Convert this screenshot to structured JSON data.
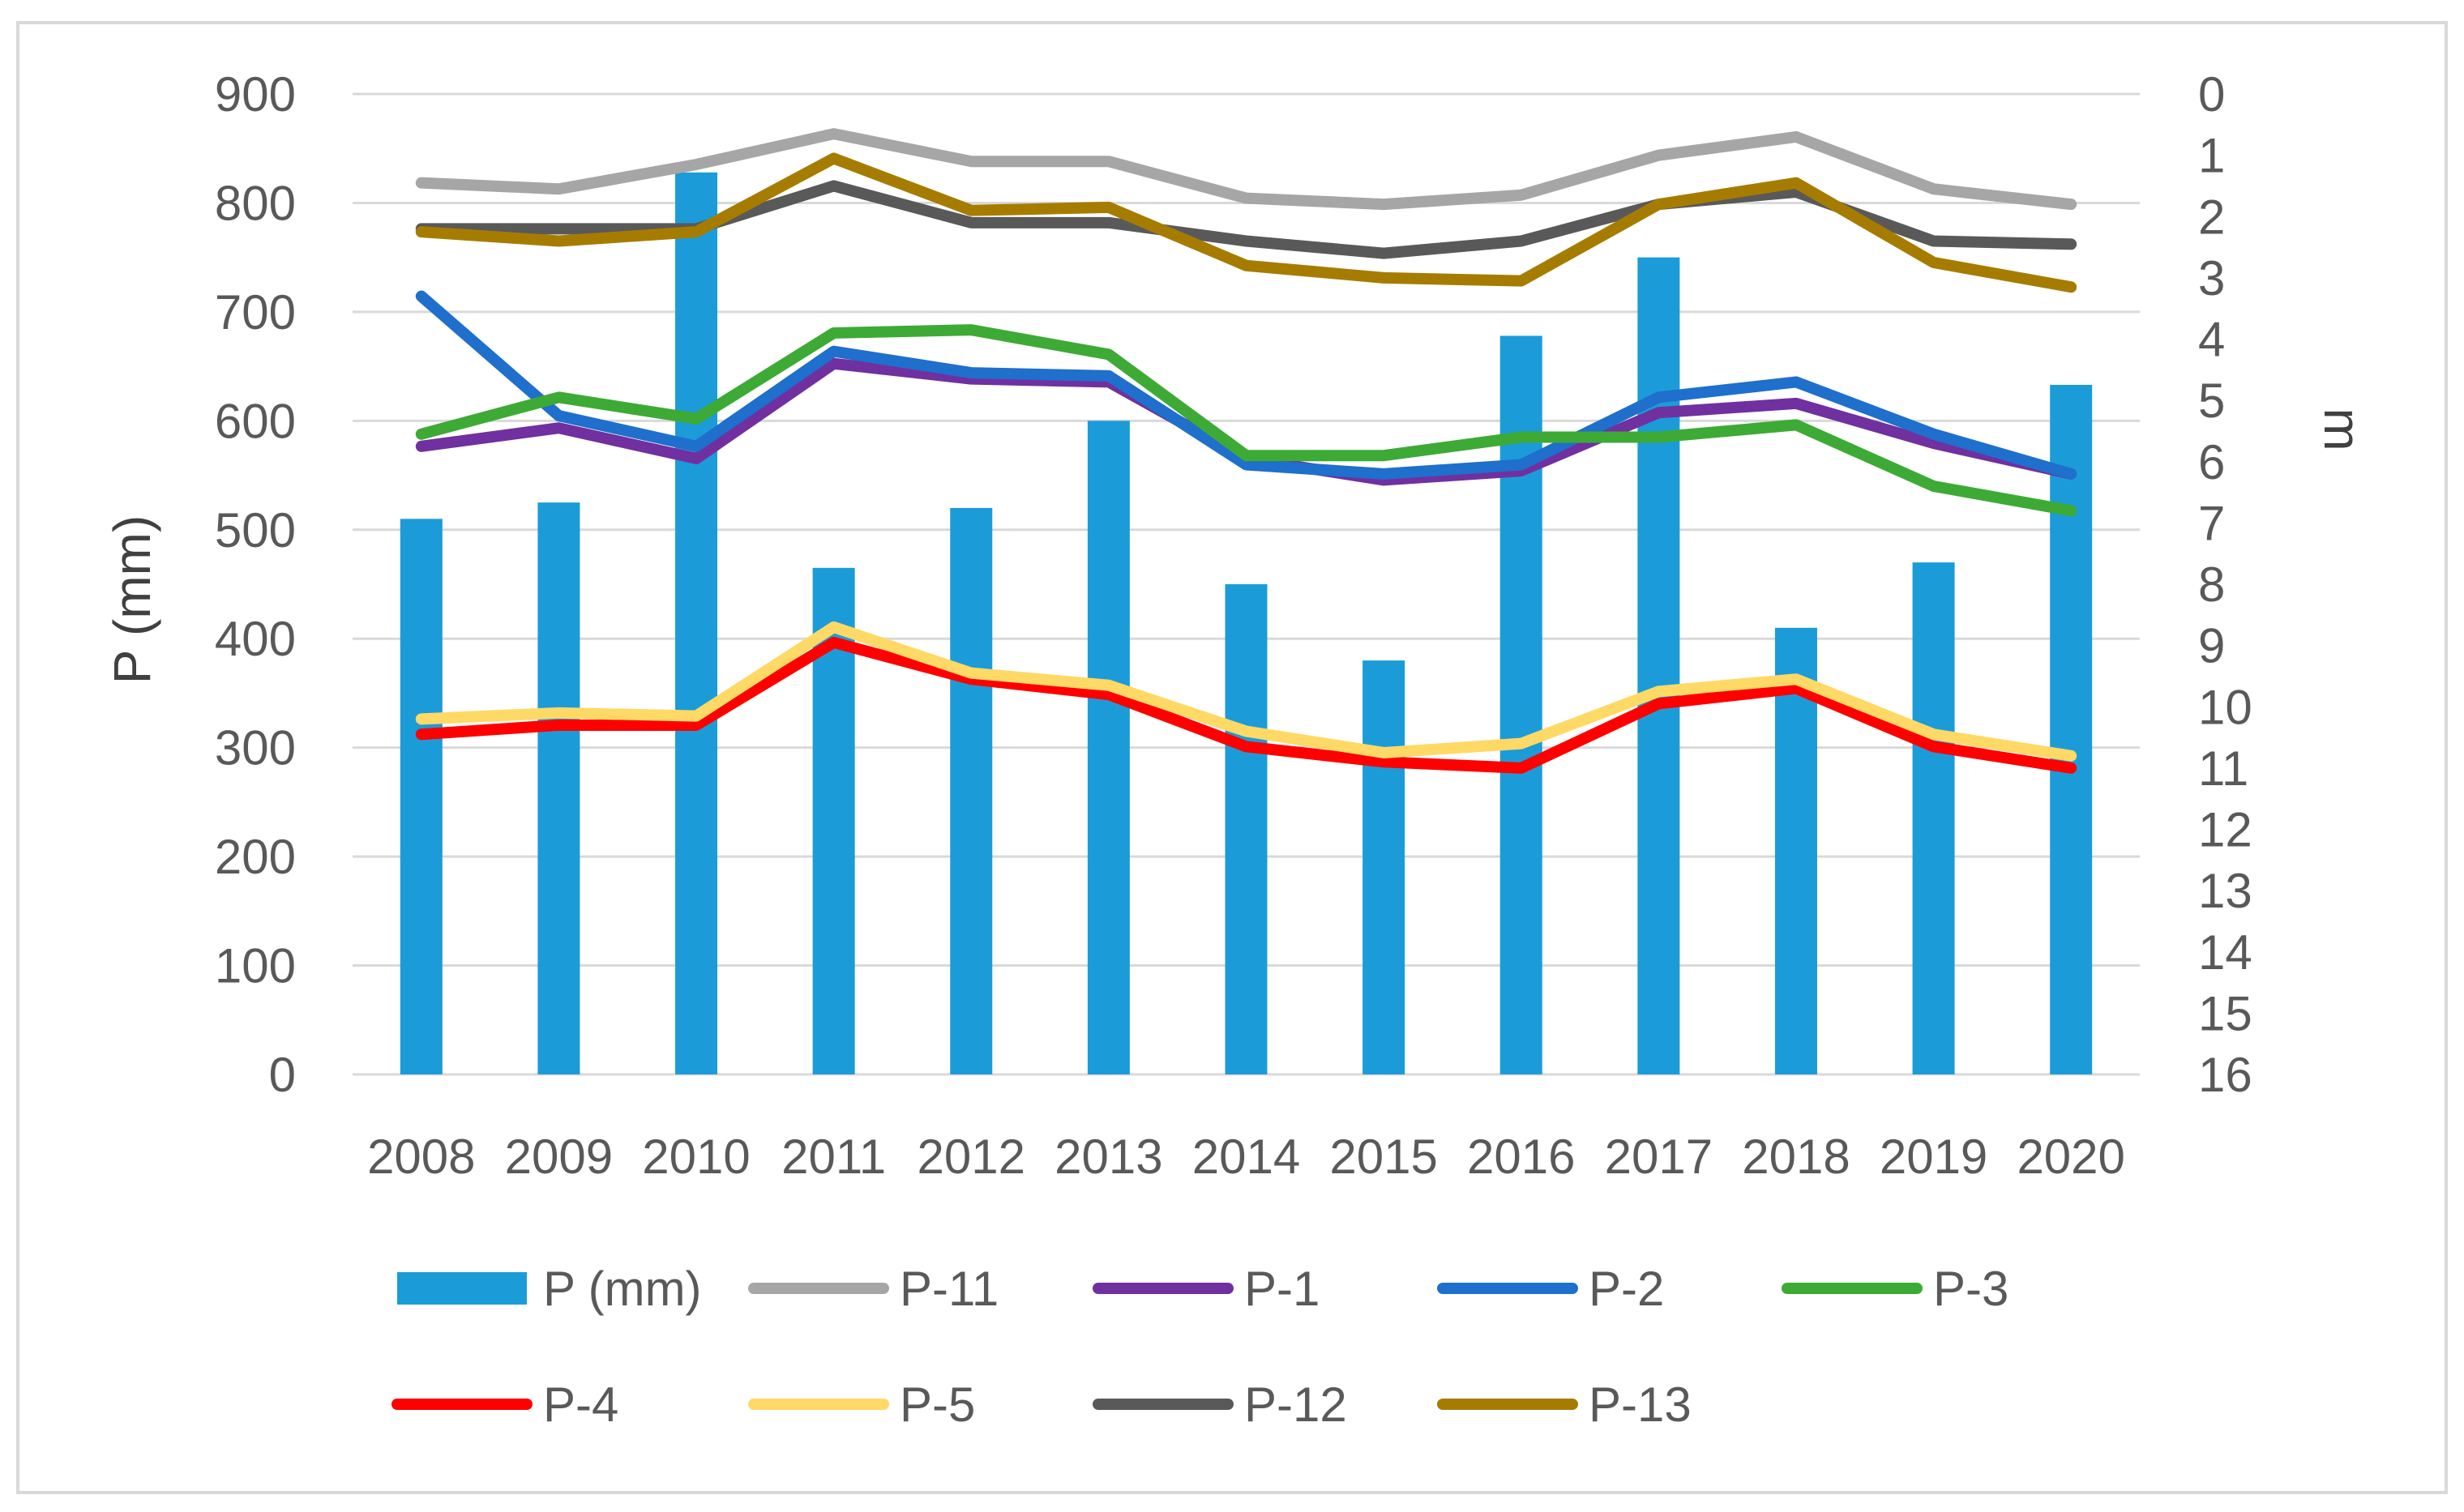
{
  "chart_data": {
    "type": "bar+line",
    "title": "",
    "categories": [
      "2008",
      "2009",
      "2010",
      "2011",
      "2012",
      "2013",
      "2014",
      "2015",
      "2016",
      "2017",
      "2018",
      "2019",
      "2020"
    ],
    "y_left": {
      "label": "P (mm)",
      "range": [
        0,
        900
      ],
      "ticks": [
        "0",
        "100",
        "200",
        "300",
        "400",
        "500",
        "600",
        "700",
        "800",
        "900"
      ]
    },
    "y_right": {
      "label": "m",
      "range": [
        0,
        16
      ],
      "inverted": true,
      "ticks": [
        "0",
        "1",
        "2",
        "3",
        "4",
        "5",
        "6",
        "7",
        "8",
        "9",
        "10",
        "11",
        "12",
        "13",
        "14",
        "15",
        "16"
      ]
    },
    "grid": true,
    "legend_position": "bottom",
    "bars": {
      "name": "P (mm)",
      "color": "#1B9CD8",
      "axis": "left",
      "values": [
        510,
        525,
        828,
        465,
        520,
        600,
        450,
        380,
        678,
        750,
        410,
        470,
        633
      ]
    },
    "series": [
      {
        "name": "P-11",
        "color": "#A6A6A6",
        "axis": "right",
        "values": [
          1.45,
          1.55,
          1.15,
          0.65,
          1.1,
          1.1,
          1.7,
          1.8,
          1.65,
          1.0,
          0.7,
          1.55,
          1.8
        ]
      },
      {
        "name": "P-1",
        "color": "#7030A0",
        "axis": "right",
        "values": [
          5.75,
          5.45,
          5.95,
          4.4,
          4.65,
          4.7,
          5.95,
          6.3,
          6.15,
          5.2,
          5.05,
          5.7,
          6.2
        ]
      },
      {
        "name": "P-2",
        "color": "#1F6FCC",
        "axis": "right",
        "values": [
          3.3,
          5.25,
          5.75,
          4.2,
          4.55,
          4.6,
          6.05,
          6.2,
          6.05,
          4.95,
          4.7,
          5.55,
          6.2
        ]
      },
      {
        "name": "P-3",
        "color": "#3DAA35",
        "axis": "right",
        "values": [
          5.55,
          4.95,
          5.3,
          3.9,
          3.85,
          4.25,
          5.9,
          5.9,
          5.6,
          5.6,
          5.4,
          6.4,
          6.8
        ]
      },
      {
        "name": "P-4",
        "color": "#FF0000",
        "axis": "right",
        "values": [
          10.45,
          10.3,
          10.3,
          8.95,
          9.55,
          9.8,
          10.65,
          10.9,
          11.0,
          9.95,
          9.7,
          10.65,
          11.0
        ]
      },
      {
        "name": "P-5",
        "color": "#FFD966",
        "axis": "right",
        "values": [
          10.2,
          10.1,
          10.15,
          8.7,
          9.45,
          9.65,
          10.4,
          10.75,
          10.6,
          9.75,
          9.55,
          10.45,
          10.8
        ]
      },
      {
        "name": "P-12",
        "color": "#595959",
        "axis": "right",
        "values": [
          2.2,
          2.2,
          2.2,
          1.5,
          2.1,
          2.1,
          2.4,
          2.6,
          2.4,
          1.8,
          1.6,
          2.4,
          2.45
        ]
      },
      {
        "name": "P-13",
        "color": "#A67C00",
        "axis": "right",
        "values": [
          2.25,
          2.4,
          2.25,
          1.05,
          1.9,
          1.85,
          2.8,
          3.0,
          3.05,
          1.8,
          1.45,
          2.75,
          3.15
        ]
      }
    ]
  }
}
